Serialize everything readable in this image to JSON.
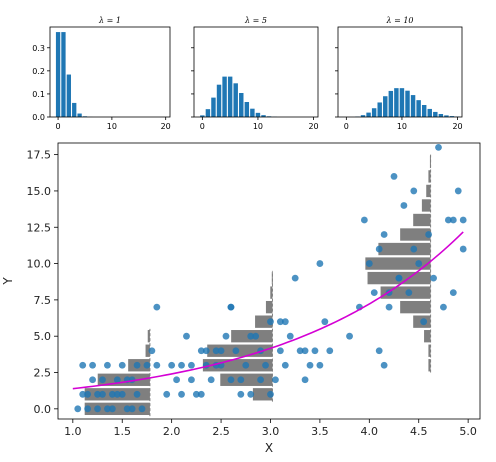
{
  "chart_data": [
    {
      "type": "bar",
      "title": "λ = 1",
      "x": [
        0,
        1,
        2,
        3,
        4,
        5,
        6,
        7,
        8,
        9,
        10,
        11,
        12,
        13,
        14,
        15,
        16,
        17,
        18,
        19,
        20
      ],
      "values": [
        0.368,
        0.368,
        0.184,
        0.061,
        0.015,
        0.003,
        0.0005,
        0,
        0,
        0,
        0,
        0,
        0,
        0,
        0,
        0,
        0,
        0,
        0,
        0,
        0
      ],
      "xlim": [
        -1.5,
        20.8
      ],
      "ylim": [
        0,
        0.39
      ],
      "xticks": [
        "0",
        "10",
        "20"
      ],
      "yticks": [
        "0.0",
        "0.1",
        "0.2",
        "0.3"
      ]
    },
    {
      "type": "bar",
      "title": "λ = 5",
      "x": [
        0,
        1,
        2,
        3,
        4,
        5,
        6,
        7,
        8,
        9,
        10,
        11,
        12,
        13,
        14,
        15,
        16,
        17,
        18,
        19,
        20
      ],
      "values": [
        0.007,
        0.034,
        0.084,
        0.14,
        0.175,
        0.175,
        0.146,
        0.104,
        0.065,
        0.036,
        0.018,
        0.008,
        0.003,
        0.001,
        0,
        0,
        0,
        0,
        0,
        0,
        0
      ],
      "xlim": [
        -1.5,
        20.8
      ],
      "ylim": [
        0,
        0.39
      ],
      "xticks": [
        "0",
        "10",
        "20"
      ],
      "yticks": []
    },
    {
      "type": "bar",
      "title": "λ = 10",
      "x": [
        0,
        1,
        2,
        3,
        4,
        5,
        6,
        7,
        8,
        9,
        10,
        11,
        12,
        13,
        14,
        15,
        16,
        17,
        18,
        19,
        20
      ],
      "values": [
        0,
        0,
        0.002,
        0.008,
        0.019,
        0.038,
        0.063,
        0.09,
        0.113,
        0.125,
        0.125,
        0.114,
        0.095,
        0.073,
        0.052,
        0.035,
        0.022,
        0.013,
        0.007,
        0.004,
        0.002
      ],
      "xlim": [
        -1.5,
        20.8
      ],
      "ylim": [
        0,
        0.39
      ],
      "xticks": [
        "0",
        "10",
        "20"
      ],
      "yticks": []
    },
    {
      "type": "scatter",
      "xlabel": "X",
      "ylabel": "Y",
      "xlim": [
        0.85,
        5.12
      ],
      "ylim": [
        -0.7,
        18.3
      ],
      "xticks": [
        "1.0",
        "1.5",
        "2.0",
        "2.5",
        "3.0",
        "3.5",
        "4.0",
        "4.5",
        "5.0"
      ],
      "yticks": [
        "0.0",
        "2.5",
        "5.0",
        "7.5",
        "10.0",
        "12.5",
        "15.0",
        "17.5"
      ],
      "curve": {
        "a": 0.8,
        "b": 0.55,
        "x_start": 1.0,
        "x_end": 4.95
      },
      "histograms": [
        {
          "base_x": 1.78,
          "scale": 0.022,
          "min_y": 0,
          "bins": [
            {
              "y": 0,
              "n": 30
            },
            {
              "y": 1,
              "n": 30
            },
            {
              "y": 2,
              "n": 24
            },
            {
              "y": 3,
              "n": 10
            },
            {
              "y": 4,
              "n": 2
            },
            {
              "y": 5,
              "n": 1
            }
          ]
        },
        {
          "base_x": 3.02,
          "scale": 0.022,
          "min_y": 1,
          "bins": [
            {
              "y": 1,
              "n": 9
            },
            {
              "y": 2,
              "n": 24
            },
            {
              "y": 3,
              "n": 32
            },
            {
              "y": 4,
              "n": 30
            },
            {
              "y": 5,
              "n": 19
            },
            {
              "y": 6,
              "n": 8
            },
            {
              "y": 7,
              "n": 3
            },
            {
              "y": 8,
              "n": 1
            },
            {
              "y": 9,
              "n": 0.3
            }
          ]
        },
        {
          "base_x": 4.62,
          "scale": 0.022,
          "min_y": 3,
          "bins": [
            {
              "y": 3,
              "n": 1
            },
            {
              "y": 4,
              "n": 1
            },
            {
              "y": 5,
              "n": 3
            },
            {
              "y": 6,
              "n": 8
            },
            {
              "y": 7,
              "n": 14
            },
            {
              "y": 8,
              "n": 23
            },
            {
              "y": 9,
              "n": 29
            },
            {
              "y": 10,
              "n": 30
            },
            {
              "y": 11,
              "n": 24
            },
            {
              "y": 12,
              "n": 14
            },
            {
              "y": 13,
              "n": 8
            },
            {
              "y": 14,
              "n": 4
            },
            {
              "y": 15,
              "n": 2
            },
            {
              "y": 16,
              "n": 1
            },
            {
              "y": 17,
              "n": 0.3
            }
          ]
        }
      ],
      "points": [
        [
          1.05,
          0
        ],
        [
          1.1,
          1
        ],
        [
          1.15,
          0
        ],
        [
          1.2,
          3
        ],
        [
          1.1,
          3
        ],
        [
          1.25,
          1
        ],
        [
          1.3,
          2
        ],
        [
          1.35,
          0
        ],
        [
          1.4,
          1
        ],
        [
          1.45,
          2
        ],
        [
          1.5,
          1
        ],
        [
          1.55,
          0
        ],
        [
          1.5,
          3
        ],
        [
          1.6,
          2
        ],
        [
          1.65,
          1
        ],
        [
          1.7,
          0
        ],
        [
          1.4,
          0
        ],
        [
          1.2,
          2
        ],
        [
          1.3,
          1
        ],
        [
          1.6,
          0
        ],
        [
          1.75,
          3
        ],
        [
          1.8,
          4
        ],
        [
          1.85,
          3
        ],
        [
          1.85,
          7
        ],
        [
          1.45,
          1
        ],
        [
          1.35,
          3
        ],
        [
          1.25,
          0
        ],
        [
          1.15,
          1
        ],
        [
          1.55,
          2
        ],
        [
          1.65,
          3
        ],
        [
          1.95,
          1
        ],
        [
          2.0,
          3
        ],
        [
          2.05,
          2
        ],
        [
          2.1,
          1
        ],
        [
          2.15,
          5
        ],
        [
          2.2,
          3
        ],
        [
          2.25,
          1
        ],
        [
          2.3,
          4
        ],
        [
          2.35,
          3
        ],
        [
          2.4,
          2
        ],
        [
          2.45,
          4
        ],
        [
          2.5,
          3
        ],
        [
          2.55,
          5
        ],
        [
          2.6,
          7
        ],
        [
          2.65,
          4
        ],
        [
          2.7,
          2
        ],
        [
          2.75,
          3
        ],
        [
          2.8,
          1
        ],
        [
          2.85,
          5
        ],
        [
          2.9,
          4
        ],
        [
          2.95,
          3
        ],
        [
          3.0,
          6
        ],
        [
          3.05,
          2
        ],
        [
          3.1,
          4
        ],
        [
          3.15,
          3
        ],
        [
          3.2,
          5
        ],
        [
          3.25,
          9
        ],
        [
          3.3,
          4
        ],
        [
          3.35,
          2
        ],
        [
          3.4,
          3
        ],
        [
          3.45,
          4
        ],
        [
          3.5,
          10
        ],
        [
          3.5,
          3
        ],
        [
          3.55,
          6
        ],
        [
          3.0,
          1
        ],
        [
          2.1,
          3
        ],
        [
          2.5,
          4
        ],
        [
          2.6,
          2
        ],
        [
          2.8,
          5
        ],
        [
          2.7,
          1
        ],
        [
          2.3,
          1
        ],
        [
          2.45,
          3
        ],
        [
          2.9,
          2
        ],
        [
          3.15,
          6
        ],
        [
          3.35,
          4
        ],
        [
          2.2,
          2
        ],
        [
          3.6,
          4
        ],
        [
          2.6,
          7
        ],
        [
          3.1,
          6
        ],
        [
          2.35,
          4
        ],
        [
          3.8,
          5
        ],
        [
          3.9,
          7
        ],
        [
          3.95,
          13
        ],
        [
          4.0,
          10
        ],
        [
          4.05,
          8
        ],
        [
          4.1,
          11
        ],
        [
          4.15,
          12
        ],
        [
          4.2,
          7
        ],
        [
          4.25,
          16
        ],
        [
          4.3,
          9
        ],
        [
          4.35,
          14
        ],
        [
          4.4,
          8
        ],
        [
          4.45,
          11
        ],
        [
          4.5,
          10
        ],
        [
          4.55,
          6
        ],
        [
          4.6,
          12
        ],
        [
          4.65,
          9
        ],
        [
          4.7,
          18
        ],
        [
          4.75,
          7
        ],
        [
          4.8,
          13
        ],
        [
          4.85,
          8
        ],
        [
          4.9,
          15
        ],
        [
          4.95,
          11
        ],
        [
          4.95,
          13
        ],
        [
          4.85,
          13
        ],
        [
          4.1,
          4
        ],
        [
          4.15,
          3
        ],
        [
          4.45,
          15
        ],
        [
          4.3,
          9
        ],
        [
          4.2,
          8
        ]
      ]
    }
  ]
}
